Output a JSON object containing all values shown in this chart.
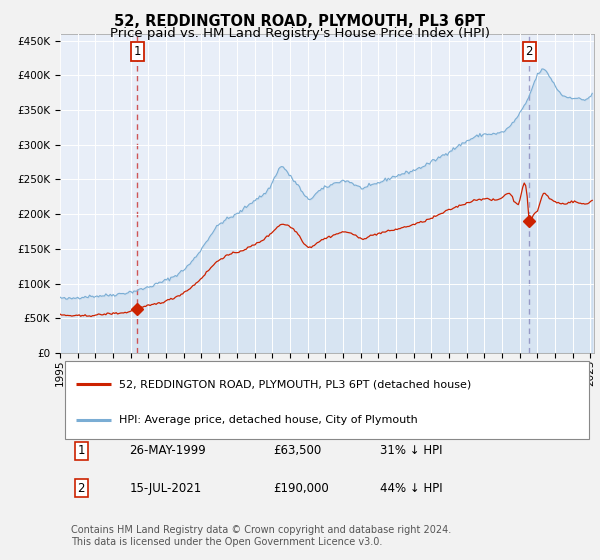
{
  "title": "52, REDDINGTON ROAD, PLYMOUTH, PL3 6PT",
  "subtitle": "Price paid vs. HM Land Registry's House Price Index (HPI)",
  "ylim": [
    0,
    460000
  ],
  "yticks": [
    0,
    50000,
    100000,
    150000,
    200000,
    250000,
    300000,
    350000,
    400000,
    450000
  ],
  "ytick_labels": [
    "£0",
    "£50K",
    "£100K",
    "£150K",
    "£200K",
    "£250K",
    "£300K",
    "£350K",
    "£400K",
    "£450K"
  ],
  "fig_background": "#f2f2f2",
  "plot_background": "#e8eef8",
  "grid_color": "#ffffff",
  "hpi_color": "#7aadd4",
  "property_color": "#cc2200",
  "sale1_date": 1999.38,
  "sale1_price": 63500,
  "sale2_date": 2021.54,
  "sale2_price": 190000,
  "vline1_color": "#cc4444",
  "vline2_color": "#8888bb",
  "legend_label1": "52, REDDINGTON ROAD, PLYMOUTH, PL3 6PT (detached house)",
  "legend_label2": "HPI: Average price, detached house, City of Plymouth",
  "annotation1_date": "26-MAY-1999",
  "annotation1_price": "£63,500",
  "annotation1_hpi": "31% ↓ HPI",
  "annotation2_date": "15-JUL-2021",
  "annotation2_price": "£190,000",
  "annotation2_hpi": "44% ↓ HPI",
  "footer": "Contains HM Land Registry data © Crown copyright and database right 2024.\nThis data is licensed under the Open Government Licence v3.0.",
  "title_fontsize": 10.5,
  "subtitle_fontsize": 9.5,
  "tick_fontsize": 7.5,
  "legend_fontsize": 8.0,
  "annot_fontsize": 8.5,
  "footer_fontsize": 7.0
}
